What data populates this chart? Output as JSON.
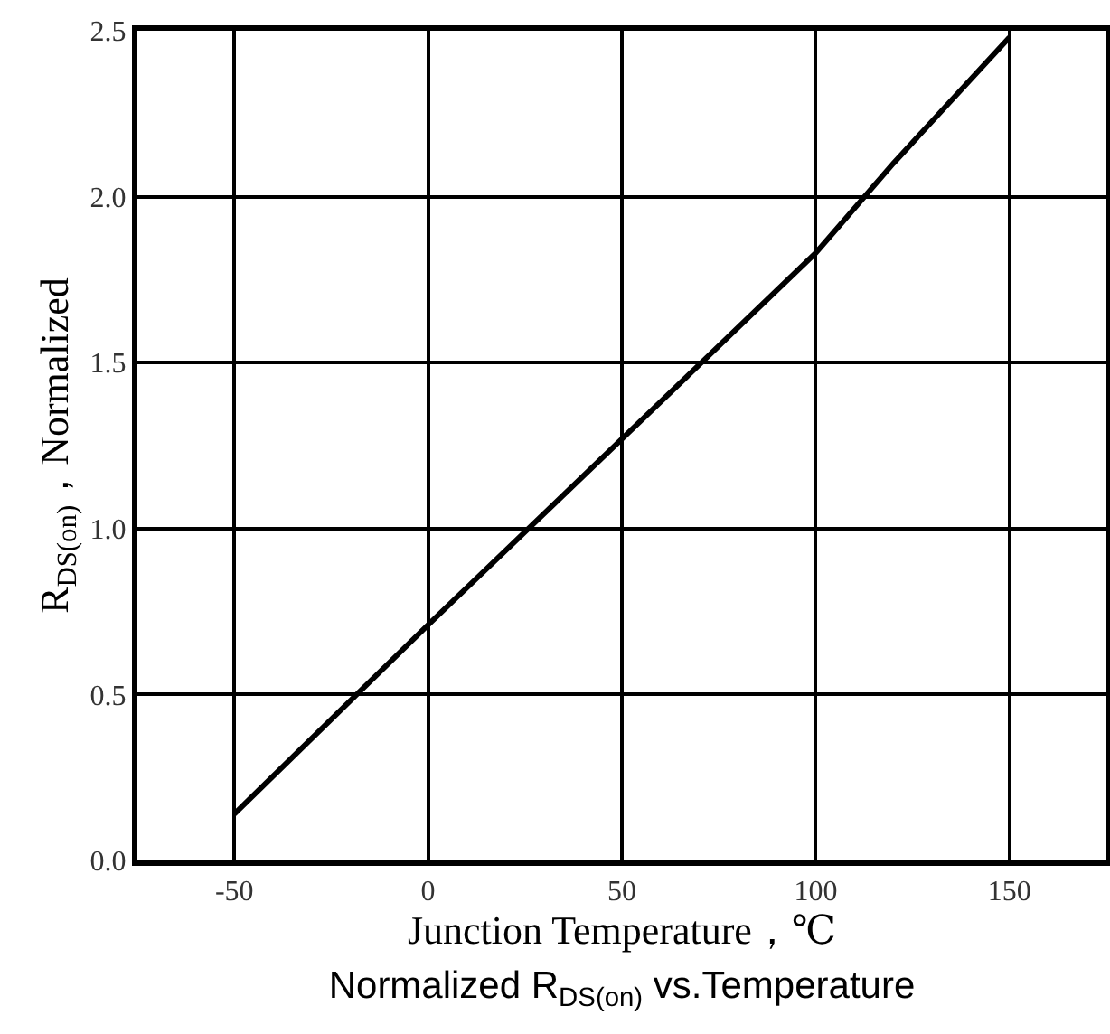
{
  "chart_data": {
    "type": "line",
    "title": "Normalized R$_{DS(on)}$ vs.Temperature",
    "xlabel": "Junction Temperature，℃",
    "ylabel": "R$_{DS(on)}$，Normalized",
    "x": [
      -50,
      0,
      50,
      100,
      120,
      150
    ],
    "series": [
      {
        "color": "#000000",
        "values": [
          0.14,
          0.71,
          1.27,
          1.83,
          2.1,
          2.48
        ]
      }
    ],
    "xlim": [
      -75,
      175
    ],
    "xticks": [
      -50,
      0,
      50,
      100,
      150
    ],
    "ylim": [
      0,
      2.5
    ],
    "yticks": [
      {
        "value": 0,
        "label": "0.0"
      },
      {
        "value": 0.5,
        "label": "0.5"
      },
      {
        "value": 1,
        "label": "1.0"
      },
      {
        "value": 1.5,
        "label": "1.5"
      },
      {
        "value": 2,
        "label": "2.0"
      },
      {
        "value": 2.5,
        "label": "2.5"
      }
    ],
    "grid": true,
    "marker": "none",
    "line_style": "solid"
  }
}
